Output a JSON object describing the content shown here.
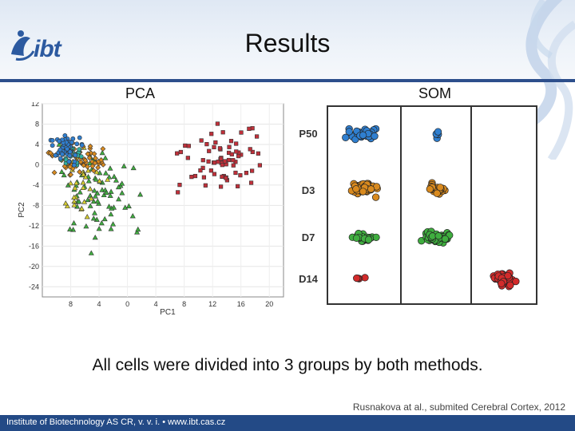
{
  "slide": {
    "title": "Results",
    "logo_text": "ibt",
    "pca_label": "PCA",
    "som_label": "SOM",
    "caption": "All cells were divided into 3 groups by both methods.",
    "citation": "Rusnakova at al., submited Cerebral Cortex, 2012",
    "footer": "Institute of Biotechnology AS CR, v. v. i.  •  www.ibt.cas.cz"
  },
  "colors": {
    "accent": "#2d4f8c",
    "p50": "#2f7fd0",
    "d3": "#d98a1e",
    "d7": "#3fae3f",
    "d14": "#d22b2b",
    "pca_yellow": "#d8d030",
    "pca_teal": "#30b0a0"
  },
  "chart_data": [
    {
      "type": "scatter",
      "title": "",
      "xlabel": "PC1",
      "ylabel": "PC2",
      "x_tick_labels": [
        "8",
        "4",
        "0",
        "4",
        "8",
        "12",
        "16",
        "20"
      ],
      "y_tick_labels": [
        "12",
        "8",
        "4",
        "0",
        "-4",
        "-8",
        "-12",
        "-16",
        "-20",
        "-24"
      ],
      "xlim": [
        -12,
        22
      ],
      "ylim": [
        -26,
        12
      ],
      "grid": true,
      "series": [
        {
          "marker": "circle",
          "color": "#2f7fd0",
          "approx_centroid": [
            -8,
            3
          ]
        },
        {
          "marker": "diamond",
          "color": "#d98a1e",
          "approx_centroid": [
            -6,
            1
          ]
        },
        {
          "marker": "triangle",
          "color": "#3fae3f",
          "approx_centroid": [
            -3,
            -8
          ]
        },
        {
          "marker": "square",
          "color": "#c0303a",
          "approx_centroid": [
            14,
            1
          ]
        }
      ]
    },
    {
      "type": "scatter",
      "title": "",
      "row_labels": [
        "P50",
        "D3",
        "D7",
        "D14"
      ],
      "columns": 3,
      "clusters": [
        {
          "row": "P50",
          "column": 1,
          "color": "#2f7fd0",
          "density": "high"
        },
        {
          "row": "P50",
          "column": 2,
          "color": "#2f7fd0",
          "density": "low"
        },
        {
          "row": "D3",
          "column": 1,
          "color": "#d98a1e",
          "density": "high"
        },
        {
          "row": "D3",
          "column": 2,
          "color": "#d98a1e",
          "density": "medium"
        },
        {
          "row": "D7",
          "column": 1,
          "color": "#3fae3f",
          "density": "medium"
        },
        {
          "row": "D7",
          "column": 2,
          "color": "#3fae3f",
          "density": "high"
        },
        {
          "row": "D14",
          "column": 1,
          "color": "#d22b2b",
          "density": "low"
        },
        {
          "row": "D14",
          "column": 3,
          "color": "#d22b2b",
          "density": "high"
        }
      ]
    }
  ]
}
